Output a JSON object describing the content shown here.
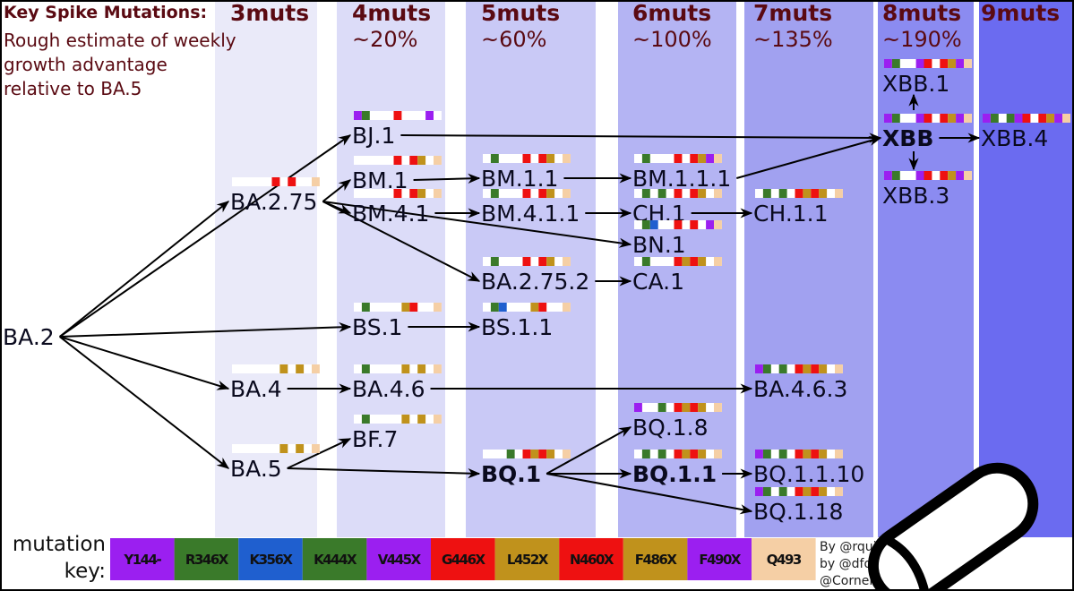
{
  "title": "Key Spike Mutations:",
  "subtitle_lines": [
    "Rough estimate of weekly",
    "growth advantage",
    "relative to BA.5"
  ],
  "columns": [
    {
      "label": "3muts",
      "advantage": "",
      "color": "#eaeaf9"
    },
    {
      "label": "4muts",
      "advantage": "~20%",
      "color": "#dcdcf8"
    },
    {
      "label": "5muts",
      "advantage": "~60%",
      "color": "#c9c9f6"
    },
    {
      "label": "6muts",
      "advantage": "~100%",
      "color": "#b4b4f3"
    },
    {
      "label": "7muts",
      "advantage": "~135%",
      "color": "#a1a1f0"
    },
    {
      "label": "8muts",
      "advantage": "~190%",
      "color": "#8b8bf1"
    },
    {
      "label": "9muts",
      "advantage": "",
      "color": "#6b6bf0"
    }
  ],
  "mutation_key": {
    "title_lines": [
      "mutation",
      "key:"
    ],
    "mutations": [
      {
        "label": "Y144-",
        "color": "#9b1ff0"
      },
      {
        "label": "R346X",
        "color": "#3a7a2a"
      },
      {
        "label": "K356X",
        "color": "#1f5fcf"
      },
      {
        "label": "K444X",
        "color": "#3a7a2a"
      },
      {
        "label": "V445X",
        "color": "#9b1ff0"
      },
      {
        "label": "G446X",
        "color": "#ee1111"
      },
      {
        "label": "L452X",
        "color": "#c0921c"
      },
      {
        "label": "N460X",
        "color": "#ee1111"
      },
      {
        "label": "F486X",
        "color": "#c0921c"
      },
      {
        "label": "F490X",
        "color": "#9b1ff0"
      },
      {
        "label": "Q493",
        "color": "#f5cfa5"
      }
    ]
  },
  "variants": [
    {
      "name": "BA.2",
      "muts": ""
    },
    {
      "name": "BA.2.75",
      "muts": "00000101001"
    },
    {
      "name": "BA.4",
      "muts": "00000010101"
    },
    {
      "name": "BA.5",
      "muts": "00000010101"
    },
    {
      "name": "BJ.1",
      "muts": "11000100010"
    },
    {
      "name": "BM.1",
      "muts": "00000101101"
    },
    {
      "name": "BM.4.1",
      "muts": "00000101101"
    },
    {
      "name": "BS.1",
      "muts": "01000011001"
    },
    {
      "name": "BA.4.6",
      "muts": "01000010101"
    },
    {
      "name": "BF.7",
      "muts": "01000010101"
    },
    {
      "name": "BM.1.1",
      "muts": "01000101101"
    },
    {
      "name": "BM.4.1.1",
      "muts": "01000101101"
    },
    {
      "name": "BA.2.75.2",
      "muts": "01000101101"
    },
    {
      "name": "BS.1.1",
      "muts": "01100011001"
    },
    {
      "name": "BQ.1",
      "muts": "00010111101",
      "bold": true
    },
    {
      "name": "BM.1.1.1",
      "muts": "01000101111"
    },
    {
      "name": "CH.1",
      "muts": "01010101101"
    },
    {
      "name": "BN.1",
      "muts": "01100101011"
    },
    {
      "name": "CA.1",
      "muts": "01000111101"
    },
    {
      "name": "BQ.1.8",
      "muts": "10010111101"
    },
    {
      "name": "BQ.1.1",
      "muts": "01010111101",
      "bold": true
    },
    {
      "name": "CH.1.1",
      "muts": "01010111101"
    },
    {
      "name": "BA.4.6.3",
      "muts": "11010111101"
    },
    {
      "name": "BQ.1.1.10",
      "muts": "11010111101"
    },
    {
      "name": "BQ.1.18",
      "muts": "11010111101"
    },
    {
      "name": "XBB.1",
      "muts": "11001101111"
    },
    {
      "name": "XBB",
      "muts": "11001101111",
      "bold": true
    },
    {
      "name": "XBB.3",
      "muts": "11001101111"
    },
    {
      "name": "XBB.4",
      "muts": "11011101111"
    }
  ],
  "edges": [
    [
      "BA.2",
      "BA.2.75"
    ],
    [
      "BA.2",
      "BJ.1"
    ],
    [
      "BA.2",
      "BS.1"
    ],
    [
      "BA.2",
      "BA.4"
    ],
    [
      "BA.2",
      "BA.5"
    ],
    [
      "BA.2.75",
      "BM.1"
    ],
    [
      "BA.2.75",
      "BM.4.1"
    ],
    [
      "BA.2.75",
      "BN.1"
    ],
    [
      "BA.2.75",
      "BA.2.75.2"
    ],
    [
      "BM.1",
      "BM.1.1"
    ],
    [
      "BM.1.1",
      "BM.1.1.1"
    ],
    [
      "BM.4.1",
      "BM.4.1.1"
    ],
    [
      "BM.4.1.1",
      "CH.1"
    ],
    [
      "CH.1",
      "CH.1.1"
    ],
    [
      "BA.2.75.2",
      "CA.1"
    ],
    [
      "BS.1",
      "BS.1.1"
    ],
    [
      "BA.4",
      "BA.4.6"
    ],
    [
      "BA.4.6",
      "BA.4.6.3"
    ],
    [
      "BA.5",
      "BF.7"
    ],
    [
      "BA.5",
      "BQ.1"
    ],
    [
      "BQ.1",
      "BQ.1.8"
    ],
    [
      "BQ.1",
      "BQ.1.1"
    ],
    [
      "BQ.1",
      "BQ.1.18"
    ],
    [
      "BQ.1.1",
      "BQ.1.1.10"
    ],
    [
      "BJ.1",
      "XBB"
    ],
    [
      "BM.1.1.1",
      "XBB"
    ],
    [
      "XBB",
      "XBB.1"
    ],
    [
      "XBB",
      "XBB.3"
    ],
    [
      "XBB",
      "XBB.4"
    ]
  ],
  "credits": [
    "By @rqui",
    "by @dfocosi an",
    "@CorneliusRo"
  ]
}
